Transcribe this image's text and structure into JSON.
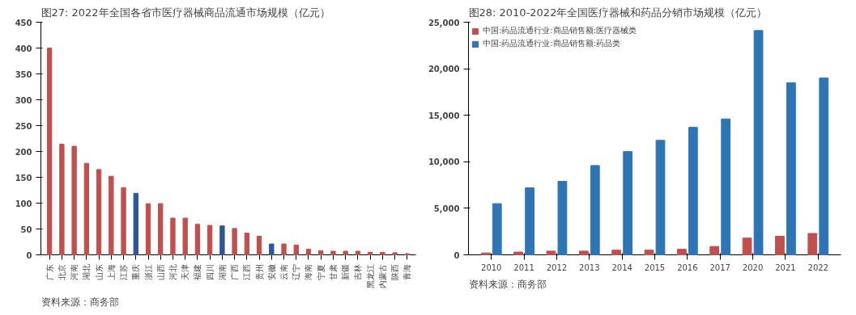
{
  "chart_data": [
    {
      "type": "bar",
      "title": "图27:  2022年全国各省市医疗器械商品流通市场规模（亿元）",
      "categories": [
        "广东",
        "北京",
        "河南",
        "湖北",
        "山东",
        "上海",
        "江苏",
        "重庆",
        "浙江",
        "山西",
        "河北",
        "天津",
        "福建",
        "四川",
        "湖南",
        "广西",
        "江西",
        "贵州",
        "安徽",
        "云南",
        "辽宁",
        "海南",
        "宁夏",
        "甘肃",
        "新疆",
        "吉林",
        "黑龙江",
        "内蒙古",
        "陕西",
        "青海"
      ],
      "values": [
        400,
        214,
        210,
        177,
        165,
        152,
        130,
        119,
        99,
        99,
        71,
        71,
        59,
        57,
        56,
        51,
        42,
        36,
        21,
        21,
        19,
        11,
        8,
        7,
        7,
        7,
        5,
        5,
        4,
        2
      ],
      "colors": [
        "#c0504d",
        "#c0504d",
        "#c0504d",
        "#c0504d",
        "#c0504d",
        "#c0504d",
        "#c0504d",
        "#2f5597",
        "#c0504d",
        "#c0504d",
        "#c0504d",
        "#c0504d",
        "#c0504d",
        "#c0504d",
        "#2f5597",
        "#c0504d",
        "#c0504d",
        "#c0504d",
        "#2f5597",
        "#c0504d",
        "#c0504d",
        "#c0504d",
        "#c0504d",
        "#c0504d",
        "#c0504d",
        "#c0504d",
        "#c0504d",
        "#c0504d",
        "#c0504d",
        "#c0504d"
      ],
      "ylim": [
        0,
        450
      ],
      "yticks": [
        0,
        50,
        100,
        150,
        200,
        250,
        300,
        350,
        400,
        450
      ],
      "grid": false,
      "legend": false,
      "annotations": [
        "资料来源：商务部"
      ]
    },
    {
      "type": "bar",
      "title": "图28:  2010-2022年全国医疗器械和药品分销市场规模（亿元）",
      "categories": [
        "2010",
        "2011",
        "2012",
        "2013",
        "2014",
        "2015",
        "2016",
        "2017",
        "2020",
        "2021",
        "2022"
      ],
      "series": [
        {
          "name": "中国:药品流通行业:商品销售额:医疗器械类",
          "color": "#c0504d",
          "values": [
            200,
            300,
            400,
            400,
            500,
            500,
            600,
            900,
            1800,
            2000,
            2300
          ]
        },
        {
          "name": "中国:药品流通行业:商品销售额:药品类",
          "color": "#2e75b6",
          "values": [
            5500,
            7200,
            7900,
            9600,
            11100,
            12300,
            13700,
            14600,
            24100,
            18500,
            19000
          ]
        }
      ],
      "ylim": [
        0,
        25000
      ],
      "yticks": [
        0,
        {
          "value": 5000,
          "label": "5,000"
        },
        {
          "value": 10000,
          "label": "10,000"
        },
        {
          "value": 15000,
          "label": "15,000"
        },
        {
          "value": 20000,
          "label": "20,000"
        },
        {
          "value": 25000,
          "label": "25,000"
        }
      ],
      "grid": false,
      "legend": "top left",
      "annotations": [
        "资料来源：商务部"
      ]
    }
  ]
}
